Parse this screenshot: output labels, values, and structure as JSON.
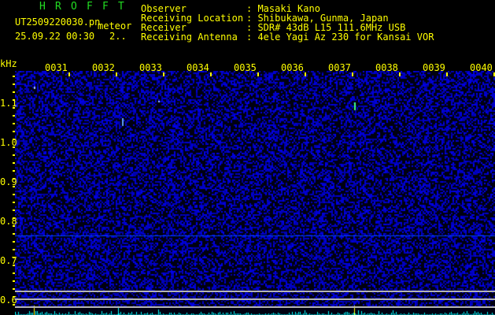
{
  "header": {
    "logo": [
      "H",
      "R",
      "O",
      "F",
      "F",
      "T"
    ],
    "filename": "UT2509220030.pn",
    "mode": "meteor",
    "datetime": "25.09.22 00:30",
    "count": "2..",
    "info": [
      {
        "label": "Observer",
        "value": ": Masaki Kano"
      },
      {
        "label": "Receiving Location",
        "value": ": Shibukawa, Gunma, Japan"
      },
      {
        "label": "Receiver",
        "value": ": SDR# 43dB L15 111.6MHz USB"
      },
      {
        "label": "Receiving Antenna",
        "value": ": 4ele Yagi Az 230 for Kansai VOR"
      }
    ]
  },
  "axis": {
    "y_unit": "kHz",
    "y_ticks": [
      "1.1",
      "1.0",
      "0.9",
      "0.8",
      "0.7",
      "0.6"
    ],
    "x_ticks": [
      "0031",
      "0032",
      "0033",
      "0034",
      "0035",
      "0036",
      "0037",
      "0038",
      "0039",
      "0040"
    ]
  },
  "colors": {
    "text": "#ffff00",
    "logo": "#22dd22",
    "noise": "#0000c8",
    "signal": "#00ffff",
    "ref_line": "#b4b4b4"
  }
}
